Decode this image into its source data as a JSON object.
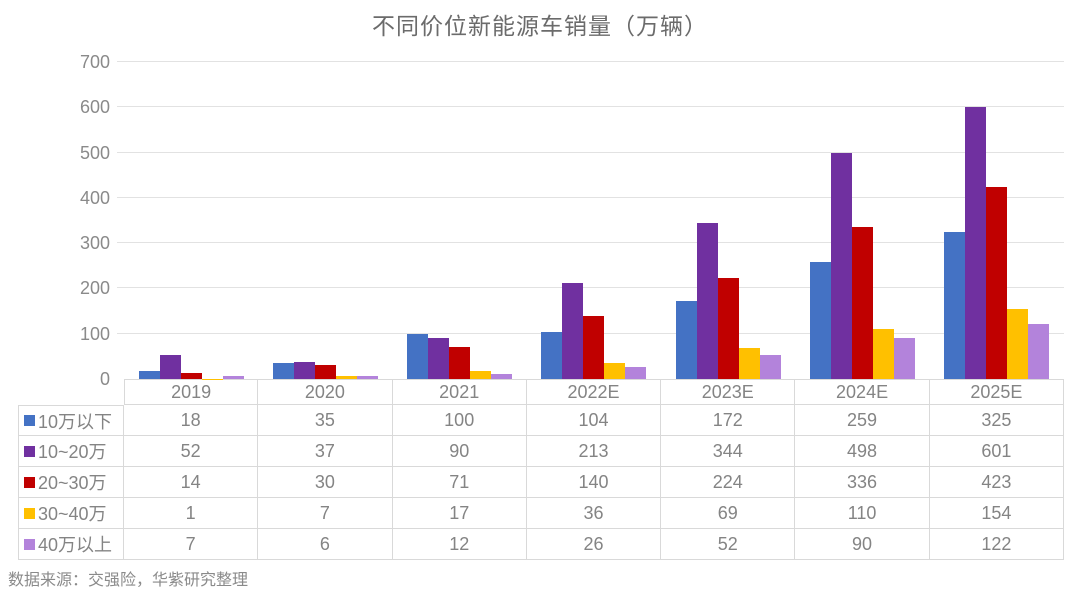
{
  "chart_data": {
    "type": "bar",
    "title": "不同价位新能源车销量（万辆）",
    "categories": [
      "2019",
      "2020",
      "2021",
      "2022E",
      "2023E",
      "2024E",
      "2025E"
    ],
    "series": [
      {
        "name": "10万以下",
        "color": "#4472C4",
        "values": [
          18,
          35,
          100,
          104,
          172,
          259,
          325
        ]
      },
      {
        "name": "10~20万",
        "color": "#7030A0",
        "values": [
          52,
          37,
          90,
          213,
          344,
          498,
          601
        ]
      },
      {
        "name": "20~30万",
        "color": "#C00000",
        "values": [
          14,
          30,
          71,
          140,
          224,
          336,
          423
        ]
      },
      {
        "name": "30~40万",
        "color": "#FFC000",
        "values": [
          1,
          7,
          17,
          36,
          69,
          110,
          154
        ]
      },
      {
        "name": "40万以上",
        "color": "#B383DB",
        "values": [
          7,
          6,
          12,
          26,
          52,
          90,
          122
        ]
      }
    ],
    "xlabel": "",
    "ylabel": "",
    "ylim": [
      0,
      700
    ],
    "ytick_step": 100,
    "yticks": [
      0,
      100,
      200,
      300,
      400,
      500,
      600,
      700
    ],
    "grid": true,
    "legend_position": "table-rows-left",
    "colors": {
      "gridline": "#E2E2E2",
      "table_border": "#D9D9D9",
      "value_text": "#848484",
      "axis_text": "#8A8A8A",
      "title_text": "#6B6B6B"
    }
  },
  "footer": {
    "source_text": "数据来源：交强险，华紫研究整理"
  }
}
